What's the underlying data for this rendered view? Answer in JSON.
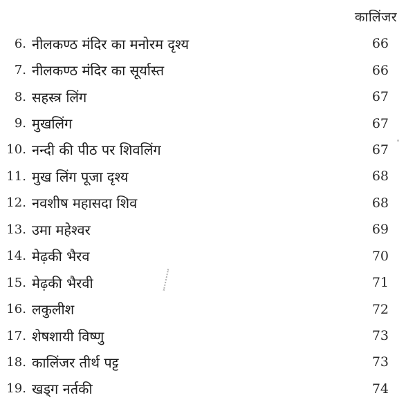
{
  "header": {
    "running_title": "कालिंजर"
  },
  "figure_list": {
    "items": [
      {
        "num": "6.",
        "title": "नीलकण्ठ मंदिर का मनोरम दृश्य",
        "page": "66"
      },
      {
        "num": "7.",
        "title": "नीलकण्ठ मंदिर का सूर्यास्त",
        "page": "66"
      },
      {
        "num": "8.",
        "title": "सहस्त्र लिंग",
        "page": "67"
      },
      {
        "num": "9.",
        "title": "मुखलिंग",
        "page": "67"
      },
      {
        "num": "10.",
        "title": "नन्दी की पीठ पर शिवलिंग",
        "page": "67"
      },
      {
        "num": "11.",
        "title": "मुख लिंग पूजा दृश्य",
        "page": "68"
      },
      {
        "num": "12.",
        "title": "नवशीष महासदा शिव",
        "page": "68"
      },
      {
        "num": "13.",
        "title": "उमा महेश्वर",
        "page": "69"
      },
      {
        "num": "14.",
        "title": "मेढ़की भैरव",
        "page": "70"
      },
      {
        "num": "15.",
        "title": "मेढ़की भैरवी",
        "page": "71"
      },
      {
        "num": "16.",
        "title": "लकुलीश",
        "page": "72"
      },
      {
        "num": "17.",
        "title": "शेषशायी विष्णु",
        "page": "73"
      },
      {
        "num": "18.",
        "title": "कालिंजर तीर्थ पट्ट",
        "page": "73"
      },
      {
        "num": "19.",
        "title": "खड्ग नर्तकी",
        "page": "74"
      }
    ]
  }
}
